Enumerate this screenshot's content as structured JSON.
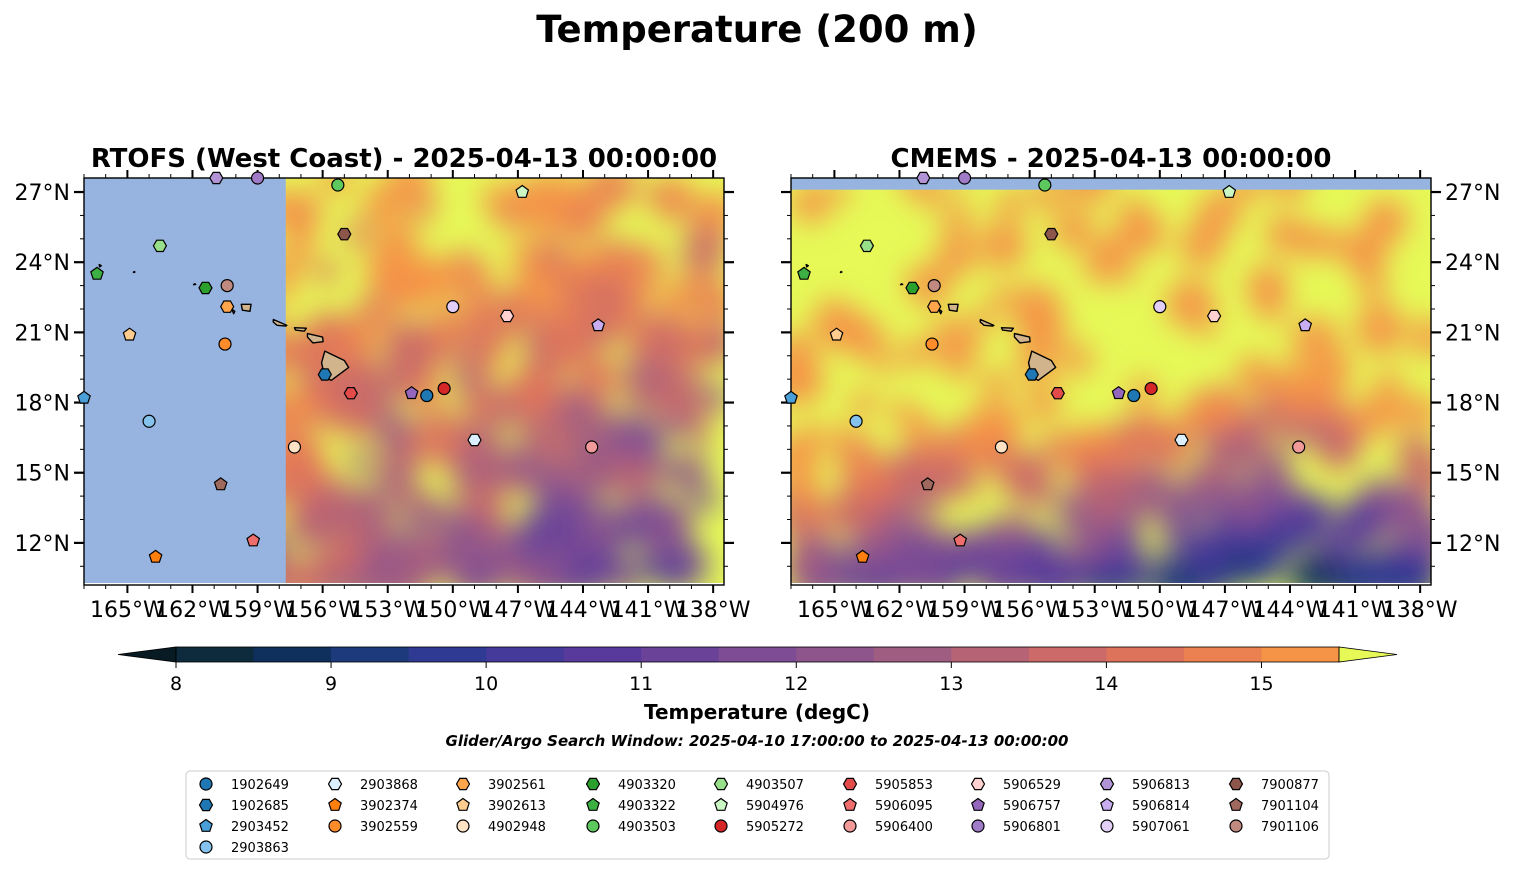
{
  "suptitle": "Temperature (200 m)",
  "colorbar": {
    "label": "Temperature (degC)",
    "min": 8,
    "max": 15.5,
    "step": 0.5,
    "ticks": [
      8,
      9,
      10,
      11,
      12,
      13,
      14,
      15
    ],
    "extend": "both",
    "colormap": "plasma-like (dark navy → purple → orange → yellow)"
  },
  "search_window": "Glider/Argo Search Window: 2025-04-10 17:00:00 to 2025-04-13 00:00:00",
  "chart_data": [
    {
      "type": "heatmap",
      "title": "RTOFS (West Coast) - 2025-04-13 00:00:00",
      "xlim": [
        -167,
        -137.5
      ],
      "ylim": [
        10.2,
        27.6
      ],
      "xticks": [
        "165°W",
        "162°W",
        "159°W",
        "156°W",
        "153°W",
        "150°W",
        "147°W",
        "144°W",
        "141°W",
        "138°W"
      ],
      "xtick_values": [
        -165,
        -162,
        -159,
        -156,
        -153,
        -150,
        -147,
        -144,
        -141,
        -138
      ],
      "yticks": [
        "12°N",
        "15°N",
        "18°N",
        "21°N",
        "24°N",
        "27°N"
      ],
      "ytick_values": [
        12,
        15,
        18,
        21,
        24,
        27
      ],
      "no_data_west_of": -157.7,
      "no_data_color": "#97b4e0"
    },
    {
      "type": "heatmap",
      "title": "CMEMS - 2025-04-13 00:00:00",
      "xlim": [
        -167,
        -137.5
      ],
      "ylim": [
        10.2,
        27.6
      ],
      "xticks": [
        "165°W",
        "162°W",
        "159°W",
        "156°W",
        "153°W",
        "150°W",
        "147°W",
        "144°W",
        "141°W",
        "138°W"
      ],
      "xtick_values": [
        -165,
        -162,
        -159,
        -156,
        -153,
        -150,
        -147,
        -144,
        -141,
        -138
      ],
      "yticks": [
        "12°N",
        "15°N",
        "18°N",
        "21°N",
        "24°N",
        "27°N"
      ],
      "ytick_values": [
        12,
        15,
        18,
        21,
        24,
        27
      ],
      "no_data_north_of": 27.1,
      "no_data_color": "#97b4e0"
    }
  ],
  "floats": [
    {
      "id": "1902649",
      "marker": "circle",
      "color": "#1f77b4",
      "lon": -151.2,
      "lat": 18.3
    },
    {
      "id": "1902685",
      "marker": "hexagon",
      "color": "#1f77b4",
      "lon": -155.9,
      "lat": 19.2
    },
    {
      "id": "2903452",
      "marker": "pentagon",
      "color": "#4a9fd8",
      "lon": -167.0,
      "lat": 18.2
    },
    {
      "id": "2903863",
      "marker": "circle",
      "color": "#86c3ec",
      "lon": -164.0,
      "lat": 17.2
    },
    {
      "id": "2903868",
      "marker": "hexagon",
      "color": "#dcefff",
      "lon": -149.0,
      "lat": 16.4
    },
    {
      "id": "3902374",
      "marker": "pentagon",
      "color": "#ff7f0e",
      "lon": -163.7,
      "lat": 11.4
    },
    {
      "id": "3902559",
      "marker": "circle",
      "color": "#ff8c2a",
      "lon": -160.5,
      "lat": 20.5
    },
    {
      "id": "3902561",
      "marker": "hexagon",
      "color": "#ffa64d",
      "lon": -160.4,
      "lat": 22.1
    },
    {
      "id": "3902613",
      "marker": "pentagon",
      "color": "#ffcc8f",
      "lon": -164.9,
      "lat": 20.9
    },
    {
      "id": "4902948",
      "marker": "circle",
      "color": "#ffe3c4",
      "lon": -157.3,
      "lat": 16.1
    },
    {
      "id": "4903320",
      "marker": "hexagon",
      "color": "#2ca02c",
      "lon": -161.4,
      "lat": 22.9
    },
    {
      "id": "4903322",
      "marker": "pentagon",
      "color": "#3cb043",
      "lon": -166.4,
      "lat": 23.5
    },
    {
      "id": "4903503",
      "marker": "circle",
      "color": "#5dc85d",
      "lon": -155.3,
      "lat": 27.3
    },
    {
      "id": "4903507",
      "marker": "hexagon",
      "color": "#98df8a",
      "lon": -163.5,
      "lat": 24.7
    },
    {
      "id": "5904976",
      "marker": "pentagon",
      "color": "#caf7c4",
      "lon": -146.8,
      "lat": 27.0
    },
    {
      "id": "5905272",
      "marker": "circle",
      "color": "#d62728",
      "lon": -150.4,
      "lat": 18.6
    },
    {
      "id": "5905853",
      "marker": "hexagon",
      "color": "#e34a4a",
      "lon": -154.7,
      "lat": 18.4
    },
    {
      "id": "5906095",
      "marker": "pentagon",
      "color": "#ee6e6e",
      "lon": -159.2,
      "lat": 12.1
    },
    {
      "id": "5906400",
      "marker": "circle",
      "color": "#f29a9a",
      "lon": -143.6,
      "lat": 16.1
    },
    {
      "id": "5906529",
      "marker": "hexagon",
      "color": "#ffd1d1",
      "lon": -147.5,
      "lat": 21.7
    },
    {
      "id": "5906757",
      "marker": "pentagon",
      "color": "#9467bd",
      "lon": -151.9,
      "lat": 18.4
    },
    {
      "id": "5906801",
      "marker": "circle",
      "color": "#a07cc8",
      "lon": -159.0,
      "lat": 27.6
    },
    {
      "id": "5906813",
      "marker": "hexagon",
      "color": "#b293d6",
      "lon": -160.9,
      "lat": 27.6
    },
    {
      "id": "5906814",
      "marker": "pentagon",
      "color": "#c8aef0",
      "lon": -143.3,
      "lat": 21.3
    },
    {
      "id": "5907061",
      "marker": "circle",
      "color": "#e2cff7",
      "lon": -150.0,
      "lat": 22.1
    },
    {
      "id": "7900877",
      "marker": "hexagon",
      "color": "#8c564b",
      "lon": -155.0,
      "lat": 25.2
    },
    {
      "id": "7901104",
      "marker": "pentagon",
      "color": "#a0695e",
      "lon": -160.7,
      "lat": 14.5
    },
    {
      "id": "7901106",
      "marker": "circle",
      "color": "#c08a80",
      "lon": -160.4,
      "lat": 23.0
    }
  ]
}
